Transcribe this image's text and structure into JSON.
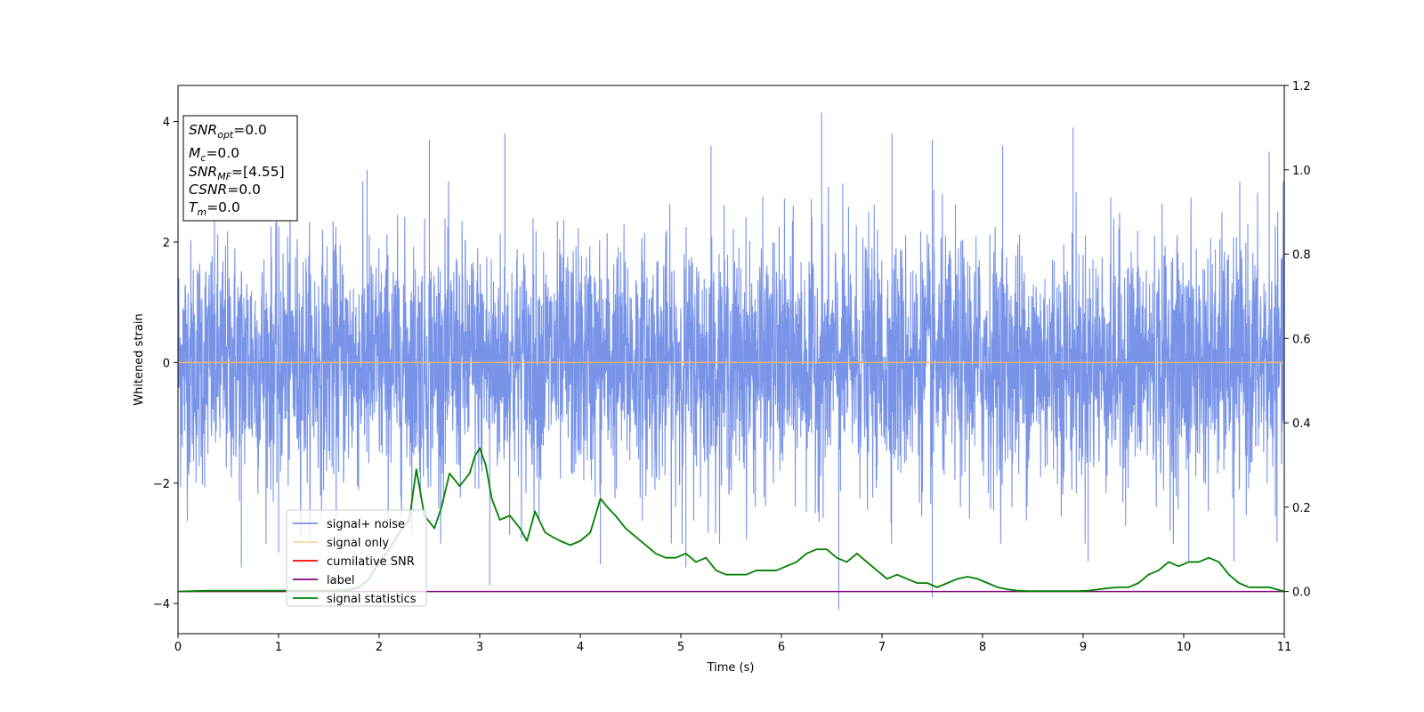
{
  "chart_data": {
    "type": "line",
    "xlabel": "Time (s)",
    "ylabel": "Whitened strain",
    "xlim": [
      0,
      11
    ],
    "ylim": [
      -4.5,
      4.6
    ],
    "y2lim": [
      -0.1,
      1.2
    ],
    "xticks": [
      "0",
      "1",
      "2",
      "3",
      "4",
      "5",
      "6",
      "7",
      "8",
      "9",
      "10",
      "11"
    ],
    "yticks": [
      "−4",
      "−2",
      "0",
      "2",
      "4"
    ],
    "y2ticks": [
      "0.0",
      "0.2",
      "0.4",
      "0.6",
      "0.8",
      "1.0",
      "1.2"
    ],
    "legend_position": "lower-left",
    "grid": false,
    "info_box": {
      "snr_opt": {
        "base": "SNR",
        "sub": "opt",
        "value": "=0.0"
      },
      "mc": {
        "base": "M",
        "sub": "c",
        "value": "=0.0"
      },
      "snr_mf": {
        "base": "SNR",
        "sub": "MF",
        "value": "=[4.55]"
      },
      "csnr": {
        "base": "CSNR",
        "value": "=0.0"
      },
      "tm": {
        "base": "T",
        "sub": "m",
        "value": "=0.0"
      }
    },
    "series": [
      {
        "name": "signal+ noise",
        "color": "#7893e8",
        "axis": "left",
        "description": "whitened noise, roughly between -2.5 and 2.5 with spikes",
        "spikes": [
          [
            0.63,
            -3.4
          ],
          [
            1.0,
            -3.15
          ],
          [
            1.88,
            3.2
          ],
          [
            2.5,
            3.7
          ],
          [
            3.1,
            -3.7
          ],
          [
            3.25,
            3.8
          ],
          [
            4.2,
            -3.35
          ],
          [
            5.3,
            3.6
          ],
          [
            5.05,
            -3.4
          ],
          [
            6.4,
            4.15
          ],
          [
            6.57,
            -4.1
          ],
          [
            7.1,
            3.8
          ],
          [
            7.5,
            3.7
          ],
          [
            7.5,
            -3.9
          ],
          [
            8.2,
            3.6
          ],
          [
            8.9,
            3.9
          ],
          [
            9.05,
            -3.3
          ],
          [
            10.05,
            -3.3
          ],
          [
            10.5,
            -3.3
          ],
          [
            10.85,
            3.5
          ],
          [
            11.0,
            3.0
          ]
        ]
      },
      {
        "name": "signal only",
        "color": "#f5b866",
        "axis": "left",
        "x": [
          0,
          11
        ],
        "y": [
          0,
          0
        ]
      },
      {
        "name": "cumilative SNR",
        "color": "#ff0000",
        "axis": "right",
        "x": [
          0,
          11
        ],
        "y": [
          0,
          0
        ]
      },
      {
        "name": "label",
        "color": "#800080",
        "axis": "right",
        "x": [
          0,
          11
        ],
        "y": [
          0,
          0
        ]
      },
      {
        "name": "signal statistics",
        "color": "#008000",
        "axis": "right",
        "x": [
          0,
          0.3,
          0.6,
          0.9,
          1.2,
          1.5,
          1.7,
          1.8,
          1.9,
          2.0,
          2.1,
          2.2,
          2.3,
          2.37,
          2.45,
          2.55,
          2.62,
          2.7,
          2.8,
          2.9,
          2.95,
          3.0,
          3.06,
          3.12,
          3.2,
          3.3,
          3.4,
          3.47,
          3.55,
          3.65,
          3.72,
          3.8,
          3.9,
          4.0,
          4.1,
          4.2,
          4.27,
          4.35,
          4.45,
          4.55,
          4.65,
          4.75,
          4.85,
          4.95,
          5.05,
          5.15,
          5.25,
          5.35,
          5.45,
          5.55,
          5.65,
          5.75,
          5.85,
          5.95,
          6.05,
          6.15,
          6.25,
          6.35,
          6.45,
          6.55,
          6.65,
          6.75,
          6.85,
          6.95,
          7.05,
          7.15,
          7.25,
          7.35,
          7.45,
          7.55,
          7.65,
          7.75,
          7.85,
          7.95,
          8.05,
          8.15,
          8.25,
          8.35,
          8.45,
          8.55,
          8.65,
          8.75,
          8.85,
          8.95,
          9.05,
          9.15,
          9.25,
          9.35,
          9.45,
          9.55,
          9.65,
          9.75,
          9.85,
          9.95,
          10.05,
          10.15,
          10.25,
          10.35,
          10.45,
          10.55,
          10.65,
          10.75,
          10.85,
          11.0
        ],
        "y": [
          0.0,
          0.002,
          0.002,
          0.002,
          0.002,
          0.002,
          0.003,
          0.01,
          0.03,
          0.07,
          0.1,
          0.14,
          0.17,
          0.29,
          0.18,
          0.15,
          0.2,
          0.28,
          0.25,
          0.28,
          0.32,
          0.34,
          0.3,
          0.22,
          0.17,
          0.18,
          0.15,
          0.12,
          0.19,
          0.14,
          0.13,
          0.12,
          0.11,
          0.12,
          0.14,
          0.22,
          0.2,
          0.18,
          0.15,
          0.13,
          0.11,
          0.09,
          0.08,
          0.08,
          0.09,
          0.07,
          0.08,
          0.05,
          0.04,
          0.04,
          0.04,
          0.05,
          0.05,
          0.05,
          0.06,
          0.07,
          0.09,
          0.1,
          0.1,
          0.08,
          0.07,
          0.09,
          0.07,
          0.05,
          0.03,
          0.04,
          0.03,
          0.02,
          0.02,
          0.01,
          0.02,
          0.03,
          0.035,
          0.03,
          0.02,
          0.01,
          0.005,
          0.002,
          0.001,
          0.001,
          0.001,
          0.001,
          0.001,
          0.001,
          0.002,
          0.005,
          0.008,
          0.01,
          0.01,
          0.02,
          0.04,
          0.05,
          0.07,
          0.06,
          0.07,
          0.07,
          0.08,
          0.07,
          0.04,
          0.02,
          0.01,
          0.01,
          0.01,
          0.0
        ]
      }
    ]
  }
}
